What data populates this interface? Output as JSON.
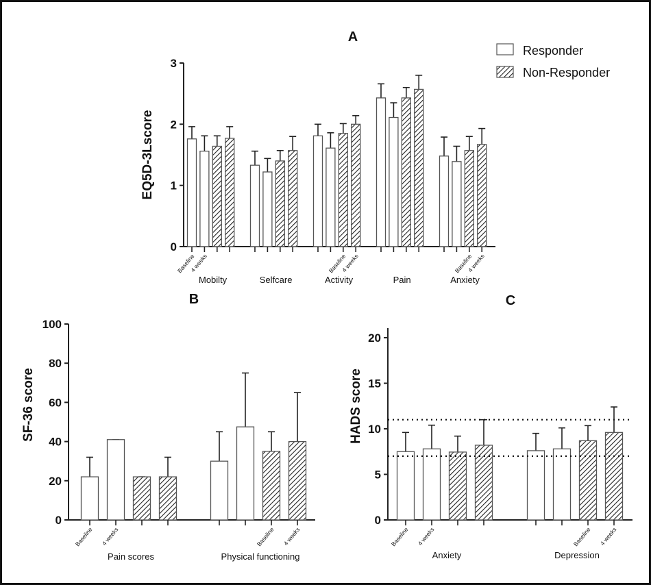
{
  "legend": {
    "responder": "Responder",
    "non_responder": "Non-Responder"
  },
  "timepoints": [
    "Baseline",
    "4 weeks"
  ],
  "colors": {
    "responder_fill": "#ffffff",
    "non_responder_hatch": "#222222",
    "bar_outline": "#555555"
  },
  "chart_data": [
    {
      "type": "bar",
      "title": "A",
      "ylabel": "EQ5D-3Lscore",
      "ylim": [
        0,
        3
      ],
      "yticks": [
        0,
        1,
        2,
        3
      ],
      "categories": [
        "Mobilty",
        "Selfcare",
        "Activity",
        "Pain",
        "Anxiety"
      ],
      "error_bars": "upper",
      "series": [
        {
          "name": "Responder",
          "baseline": [
            1.76,
            1.33,
            1.81,
            2.43,
            1.48
          ],
          "weeks4": [
            1.56,
            1.22,
            1.61,
            2.11,
            1.39
          ],
          "baseline_err_top": [
            1.96,
            1.56,
            2.0,
            2.66,
            1.79
          ],
          "weeks4_err_top": [
            1.81,
            1.44,
            1.86,
            2.35,
            1.64
          ]
        },
        {
          "name": "Non-Responder",
          "baseline": [
            1.64,
            1.4,
            1.85,
            2.43,
            1.57
          ],
          "weeks4": [
            1.77,
            1.57,
            2.0,
            2.57,
            1.67
          ],
          "baseline_err_top": [
            1.81,
            1.57,
            2.01,
            2.6,
            1.8
          ],
          "weeks4_err_top": [
            1.96,
            1.8,
            2.14,
            2.8,
            1.93
          ]
        }
      ]
    },
    {
      "type": "bar",
      "title": "B",
      "ylabel": "SF-36 score",
      "ylim": [
        0,
        100
      ],
      "yticks": [
        0,
        20,
        40,
        60,
        80,
        100
      ],
      "categories": [
        "Pain scores",
        "Physical functioning"
      ],
      "error_bars": "upper",
      "series": [
        {
          "name": "Responder",
          "baseline": [
            22,
            30
          ],
          "weeks4": [
            41,
            47.5
          ],
          "baseline_err_top": [
            32,
            45
          ],
          "weeks4_err_top": [
            41,
            75
          ]
        },
        {
          "name": "Non-Responder",
          "baseline": [
            22,
            35
          ],
          "weeks4": [
            22,
            40
          ],
          "baseline_err_top": [
            22,
            45
          ],
          "weeks4_err_top": [
            32,
            65
          ]
        }
      ]
    },
    {
      "type": "bar",
      "title": "C",
      "ylabel": "HADS score",
      "ylim": [
        0,
        21
      ],
      "yticks": [
        0,
        5,
        10,
        15,
        20
      ],
      "categories": [
        "Anxiety",
        "Depression"
      ],
      "error_bars": "upper",
      "reference_lines": [
        11,
        7
      ],
      "series": [
        {
          "name": "Responder",
          "baseline": [
            7.5,
            7.6
          ],
          "weeks4": [
            7.8,
            7.8
          ],
          "baseline_err_top": [
            9.6,
            9.5
          ],
          "weeks4_err_top": [
            10.4,
            10.1
          ]
        },
        {
          "name": "Non-Responder",
          "baseline": [
            7.45,
            8.7
          ],
          "weeks4": [
            8.2,
            9.6
          ],
          "baseline_err_top": [
            9.2,
            10.35
          ],
          "weeks4_err_top": [
            11.0,
            12.4
          ]
        }
      ]
    }
  ]
}
